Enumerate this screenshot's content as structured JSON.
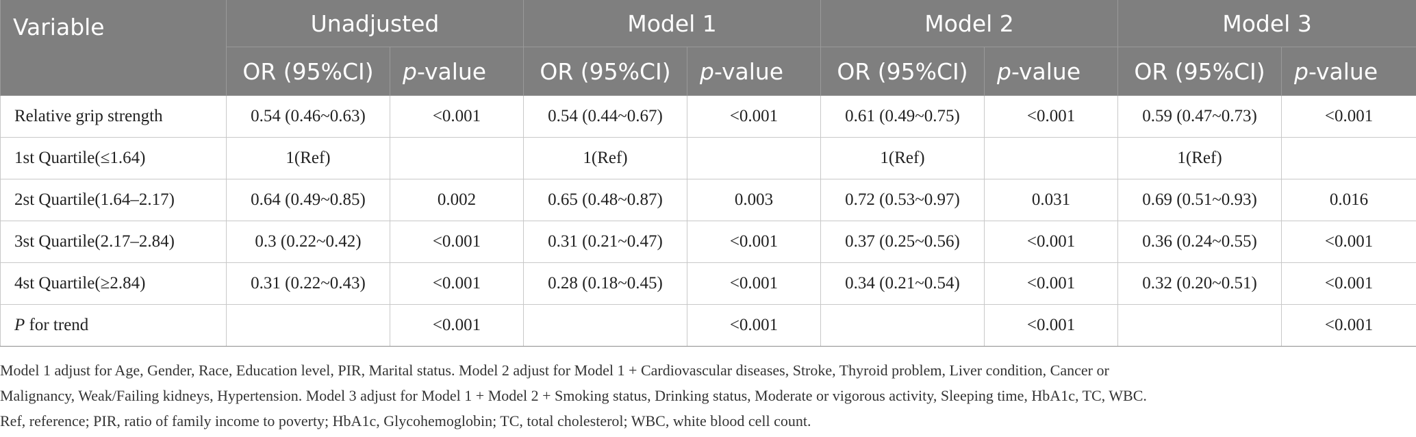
{
  "table": {
    "header_variable": "Variable",
    "models": [
      "Unadjusted",
      "Model 1",
      "Model 2",
      "Model 3"
    ],
    "sub_or": "OR (95%CI)",
    "sub_p_italic": "p",
    "sub_p_rest": "-value",
    "rows": [
      {
        "label": "Relative grip strength",
        "cells": [
          "0.54 (0.46~0.63)",
          "<0.001",
          "0.54 (0.44~0.67)",
          "<0.001",
          "0.61 (0.49~0.75)",
          "<0.001",
          "0.59 (0.47~0.73)",
          "<0.001"
        ]
      },
      {
        "label": "1st Quartile(≤1.64)",
        "cells": [
          "1(Ref)",
          "",
          "1(Ref)",
          "",
          "1(Ref)",
          "",
          "1(Ref)",
          ""
        ]
      },
      {
        "label": "2st Quartile(1.64–2.17)",
        "cells": [
          "0.64 (0.49~0.85)",
          "0.002",
          "0.65 (0.48~0.87)",
          "0.003",
          "0.72 (0.53~0.97)",
          "0.031",
          "0.69 (0.51~0.93)",
          "0.016"
        ]
      },
      {
        "label": "3st Quartile(2.17–2.84)",
        "cells": [
          "0.3 (0.22~0.42)",
          "<0.001",
          "0.31 (0.21~0.47)",
          "<0.001",
          "0.37 (0.25~0.56)",
          "<0.001",
          "0.36 (0.24~0.55)",
          "<0.001"
        ]
      },
      {
        "label": "4st Quartile(≥2.84)",
        "cells": [
          "0.31 (0.22~0.43)",
          "<0.001",
          "0.28 (0.18~0.45)",
          "<0.001",
          "0.34 (0.21~0.54)",
          "<0.001",
          "0.32 (0.20~0.51)",
          "<0.001"
        ]
      }
    ],
    "trend_row": {
      "label_italic": "P",
      "label_rest": " for trend",
      "cells": [
        "",
        "<0.001",
        "",
        "<0.001",
        "",
        "<0.001",
        "",
        "<0.001"
      ]
    }
  },
  "footnote": {
    "line1": "Model 1 adjust for Age, Gender, Race, Education level, PIR, Marital status. Model 2 adjust for Model 1 + Cardiovascular diseases, Stroke, Thyroid problem, Liver condition, Cancer or",
    "line2": "Malignancy, Weak/Failing kidneys, Hypertension. Model 3 adjust for Model 1 + Model 2 + Smoking status, Drinking status, Moderate or vigorous activity, Sleeping time, HbA1c, TC, WBC.",
    "line3": "Ref, reference; PIR, ratio of family income to poverty; HbA1c, Glycohemoglobin; TC, total cholesterol; WBC, white blood cell count."
  },
  "colors": {
    "header_bg": "#7f7f7f",
    "header_text": "#ffffff",
    "body_text": "#222222",
    "grid_line": "#c8c8c8"
  }
}
